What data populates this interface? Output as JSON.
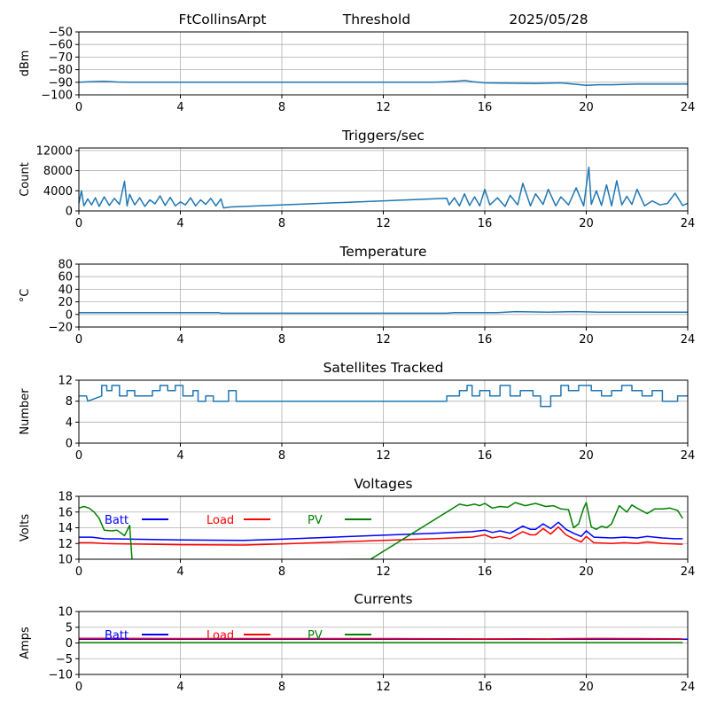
{
  "header": {
    "station": "FtCollinsArpt",
    "mode": "Threshold",
    "date": "2025/05/28"
  },
  "chart_data": [
    {
      "id": "signal",
      "type": "line",
      "title": "",
      "ylabel": "dBm",
      "xlim": [
        0,
        24
      ],
      "ylim": [
        -100,
        -50
      ],
      "x_ticks": [
        0,
        4,
        8,
        12,
        16,
        20,
        24
      ],
      "y_ticks": [
        -100,
        -90,
        -80,
        -70,
        -60,
        -50
      ],
      "color": "#1f77b4",
      "grid": true,
      "series": [
        {
          "x": [
            0,
            0.5,
            1,
            1.5,
            2,
            3,
            4,
            5,
            6,
            8,
            10,
            12,
            14,
            14.5,
            15,
            15.2,
            15.5,
            16,
            17,
            18,
            19,
            19.5,
            20,
            20.5,
            21,
            22,
            23,
            24
          ],
          "values": [
            -90,
            -89.5,
            -89.2,
            -89.8,
            -90,
            -90,
            -90,
            -90,
            -90,
            -90,
            -90,
            -90,
            -90,
            -89.6,
            -89,
            -88.6,
            -89.5,
            -90.5,
            -90.8,
            -91,
            -90.5,
            -91.5,
            -92.5,
            -92,
            -92,
            -91.5,
            -91.5,
            -91.5
          ]
        }
      ]
    },
    {
      "id": "triggers",
      "type": "line",
      "title": "Triggers/sec",
      "ylabel": "Count",
      "xlim": [
        0,
        24
      ],
      "ylim": [
        0,
        12500
      ],
      "x_ticks": [
        0,
        4,
        8,
        12,
        16,
        20,
        24
      ],
      "y_ticks": [
        0,
        4000,
        8000,
        12000
      ],
      "color": "#1f77b4",
      "grid": true,
      "series": [
        {
          "x": [
            0,
            0.1,
            0.2,
            0.35,
            0.5,
            0.65,
            0.8,
            1.0,
            1.2,
            1.4,
            1.6,
            1.8,
            1.9,
            2.0,
            2.2,
            2.4,
            2.6,
            2.8,
            3.0,
            3.2,
            3.4,
            3.6,
            3.8,
            4.0,
            4.2,
            4.4,
            4.6,
            4.8,
            5.0,
            5.2,
            5.4,
            5.6,
            5.7,
            6.0,
            14.5,
            14.6,
            14.8,
            15.0,
            15.2,
            15.4,
            15.6,
            15.8,
            16.0,
            16.2,
            16.5,
            16.8,
            17.0,
            17.3,
            17.5,
            17.8,
            18.0,
            18.3,
            18.5,
            18.8,
            19.0,
            19.3,
            19.6,
            19.9,
            20.1,
            20.2,
            20.4,
            20.6,
            20.8,
            21.0,
            21.2,
            21.4,
            21.6,
            21.8,
            22.0,
            22.3,
            22.6,
            22.9,
            23.2,
            23.5,
            23.8,
            24.0
          ],
          "values": [
            1500,
            4000,
            1000,
            2400,
            1200,
            2600,
            900,
            2800,
            1100,
            2500,
            1300,
            5900,
            1000,
            3300,
            1200,
            2600,
            900,
            2200,
            1400,
            3000,
            1100,
            2700,
            1000,
            1800,
            1200,
            2600,
            1000,
            2200,
            1300,
            2500,
            1000,
            2400,
            600,
            800,
            2500,
            1200,
            2600,
            1000,
            3400,
            1100,
            2800,
            1000,
            4300,
            1200,
            2600,
            900,
            3100,
            1200,
            5500,
            1000,
            3400,
            1300,
            4300,
            1000,
            2800,
            1200,
            4600,
            1000,
            8700,
            1300,
            4000,
            1100,
            5200,
            1000,
            6000,
            1200,
            2900,
            1300,
            4300,
            1000,
            2000,
            1200,
            1500,
            3500,
            1100,
            1500
          ]
        }
      ]
    },
    {
      "id": "temperature",
      "type": "line",
      "title": "Temperature",
      "ylabel": "°C",
      "xlim": [
        0,
        24
      ],
      "ylim": [
        -20,
        80
      ],
      "x_ticks": [
        0,
        4,
        8,
        12,
        16,
        20,
        24
      ],
      "y_ticks": [
        -20,
        0,
        20,
        40,
        60,
        80
      ],
      "color": "#1f77b4",
      "grid": true,
      "series": [
        {
          "x": [
            0,
            4,
            5.5,
            5.6,
            14.5,
            14.8,
            16.5,
            17.2,
            18.5,
            19.6,
            20.5,
            24
          ],
          "values": [
            3,
            3,
            3,
            2,
            2,
            3,
            3,
            4.5,
            3.5,
            4.5,
            3.5,
            3.5
          ]
        }
      ]
    },
    {
      "id": "satellites",
      "type": "line",
      "title": "Satellites Tracked",
      "ylabel": "Number",
      "xlim": [
        0,
        24
      ],
      "ylim": [
        0,
        12
      ],
      "x_ticks": [
        0,
        4,
        8,
        12,
        16,
        20,
        24
      ],
      "y_ticks": [
        0,
        4,
        8,
        12
      ],
      "color": "#1f77b4",
      "grid": true,
      "series": [
        {
          "x": [
            0,
            0.3,
            0.35,
            0.9,
            0.9,
            1.1,
            1.1,
            1.3,
            1.3,
            1.6,
            1.6,
            1.9,
            1.9,
            2.2,
            2.2,
            2.9,
            2.9,
            3.2,
            3.2,
            3.5,
            3.5,
            3.8,
            3.8,
            4.1,
            4.1,
            4.5,
            4.5,
            4.7,
            4.7,
            5.0,
            5.0,
            5.3,
            5.3,
            5.9,
            5.9,
            6.2,
            6.2,
            6.3,
            14.5,
            14.5,
            15.0,
            15.0,
            15.3,
            15.3,
            15.5,
            15.5,
            15.8,
            15.8,
            16.2,
            16.2,
            16.6,
            16.6,
            17.0,
            17.0,
            17.4,
            17.4,
            17.9,
            17.9,
            18.2,
            18.2,
            18.6,
            18.6,
            19.0,
            19.0,
            19.3,
            19.3,
            19.7,
            19.7,
            20.2,
            20.2,
            20.6,
            20.6,
            21.0,
            21.0,
            21.4,
            21.4,
            21.8,
            21.8,
            22.2,
            22.2,
            22.6,
            22.6,
            23.0,
            23.0,
            23.6,
            23.6,
            24.0
          ],
          "values": [
            9,
            9,
            8,
            9,
            11,
            11,
            10,
            10,
            11,
            11,
            9,
            9,
            10,
            10,
            9,
            9,
            10,
            10,
            11,
            11,
            10,
            10,
            11,
            11,
            9,
            9,
            10,
            10,
            8,
            8,
            9,
            9,
            8,
            8,
            10,
            10,
            8,
            8,
            8,
            9,
            9,
            10,
            10,
            11,
            11,
            9,
            9,
            10,
            10,
            9,
            9,
            11,
            11,
            9,
            9,
            10,
            10,
            9,
            9,
            7,
            7,
            9,
            9,
            11,
            11,
            10,
            10,
            11,
            11,
            10,
            10,
            9,
            9,
            10,
            10,
            11,
            11,
            10,
            10,
            9,
            9,
            10,
            10,
            8,
            8,
            9,
            9
          ]
        }
      ]
    },
    {
      "id": "voltages",
      "type": "line",
      "title": "Voltages",
      "ylabel": "Volts",
      "xlim": [
        0,
        24
      ],
      "ylim": [
        10,
        18
      ],
      "x_ticks": [
        0,
        4,
        8,
        12,
        16,
        20,
        24
      ],
      "y_ticks": [
        10,
        12,
        14,
        16,
        18
      ],
      "grid": true,
      "legend": "top-left",
      "series": [
        {
          "name": "Batt",
          "color": "#0000ff",
          "x": [
            0,
            0.5,
            1,
            4,
            6.5,
            8,
            12,
            14,
            15.5,
            16,
            16.3,
            16.6,
            17,
            17.5,
            17.8,
            18.0,
            18.3,
            18.6,
            18.9,
            19.2,
            19.5,
            19.8,
            20.0,
            20.3,
            21,
            21.5,
            22,
            22.4,
            23,
            23.5,
            23.8
          ],
          "values": [
            12.8,
            12.8,
            12.6,
            12.45,
            12.4,
            12.55,
            13.05,
            13.3,
            13.5,
            13.7,
            13.4,
            13.6,
            13.3,
            14.2,
            13.8,
            13.8,
            14.5,
            13.9,
            14.7,
            13.8,
            13.3,
            12.9,
            13.6,
            12.8,
            12.7,
            12.8,
            12.7,
            12.9,
            12.7,
            12.6,
            12.6
          ]
        },
        {
          "name": "Load",
          "color": "#ff0000",
          "x": [
            0,
            0.5,
            1,
            4,
            6.5,
            8,
            12,
            14,
            15.5,
            16,
            16.3,
            16.6,
            17,
            17.5,
            17.8,
            18.0,
            18.3,
            18.6,
            18.9,
            19.2,
            19.5,
            19.8,
            20.0,
            20.3,
            21,
            21.5,
            22,
            22.4,
            23,
            23.5,
            23.8
          ],
          "values": [
            12.1,
            12.1,
            12.0,
            11.85,
            11.8,
            11.95,
            12.4,
            12.6,
            12.8,
            13.1,
            12.7,
            12.9,
            12.6,
            13.5,
            13.1,
            13.1,
            13.9,
            13.2,
            14.1,
            13.1,
            12.6,
            12.2,
            12.9,
            12.1,
            12.0,
            12.1,
            12.0,
            12.2,
            12.0,
            11.95,
            11.9
          ]
        },
        {
          "name": "PV",
          "color": "#008000",
          "x": [
            0,
            0.2,
            0.4,
            0.6,
            0.8,
            1.0,
            1.3,
            1.5,
            1.8,
            2.0,
            2.1,
            11.5,
            15.0,
            15.3,
            15.6,
            15.8,
            16.0,
            16.3,
            16.6,
            16.9,
            17.2,
            17.6,
            18.0,
            18.4,
            18.7,
            19.0,
            19.3,
            19.5,
            19.7,
            19.9,
            20.0,
            20.2,
            20.4,
            20.6,
            20.8,
            21.0,
            21.3,
            21.6,
            21.8,
            22.0,
            22.4,
            22.7,
            23.0,
            23.3,
            23.6,
            23.8
          ],
          "values": [
            16.5,
            16.7,
            16.5,
            16.0,
            15.2,
            13.7,
            13.6,
            13.7,
            13.0,
            14.3,
            9.8,
            10.0,
            17.0,
            16.8,
            17.0,
            16.8,
            17.1,
            16.5,
            16.7,
            16.6,
            17.2,
            16.8,
            17.1,
            16.7,
            16.8,
            16.4,
            16.3,
            14.0,
            14.5,
            16.5,
            17.2,
            14.1,
            13.8,
            14.2,
            14.0,
            14.5,
            16.8,
            16.0,
            16.9,
            16.5,
            15.8,
            16.4,
            16.4,
            16.5,
            16.2,
            15.2
          ]
        }
      ]
    },
    {
      "id": "currents",
      "type": "line",
      "title": "Currents",
      "ylabel": "Amps",
      "xlim": [
        0,
        24
      ],
      "ylim": [
        -10,
        10
      ],
      "x_ticks": [
        0,
        4,
        8,
        12,
        16,
        20,
        24
      ],
      "y_ticks": [
        -10,
        -5,
        0,
        5,
        10
      ],
      "grid": true,
      "legend": "top-left",
      "series": [
        {
          "name": "Batt",
          "color": "#0000ff",
          "x": [
            0,
            24
          ],
          "values": [
            1.2,
            1.2
          ]
        },
        {
          "name": "Load",
          "color": "#ff0000",
          "x": [
            0,
            4,
            8,
            12,
            16,
            17.5,
            18.5,
            19.5,
            20.5,
            22,
            23.5,
            23.8
          ],
          "values": [
            1.5,
            1.4,
            1.4,
            1.4,
            1.3,
            1.35,
            1.3,
            1.4,
            1.45,
            1.4,
            1.35,
            1.3
          ]
        },
        {
          "name": "PV",
          "color": "#008000",
          "x": [
            0,
            23.8
          ],
          "values": [
            0.1,
            0.1
          ]
        }
      ]
    }
  ]
}
